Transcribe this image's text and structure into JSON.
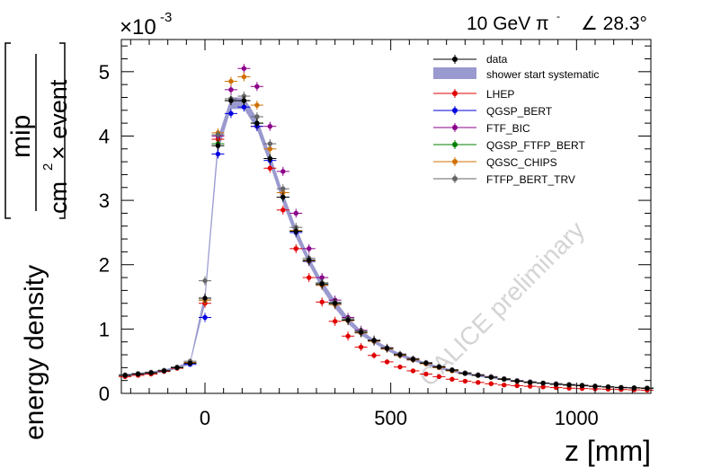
{
  "chart_data": {
    "type": "scatter",
    "title": "10 GeV π⁻  ∠ 28.3°",
    "title_energy": "10 GeV π",
    "title_sup": "-",
    "title_angle": "∠ 28.3°",
    "exponent_label": "×10",
    "exponent_sup": "-3",
    "xlabel": "z [mm]",
    "ylabel_main": "energy density",
    "ylabel_num": "mip",
    "ylabel_den_a": "cm",
    "ylabel_den_sup": "2",
    "ylabel_den_b": " × event",
    "watermark": "CALICE preliminary",
    "xlim": [
      -225,
      1200
    ],
    "ylim": [
      0,
      5.5
    ],
    "y_scale": "1e-3",
    "xticks": [
      0,
      500,
      1000
    ],
    "xtick_labels": [
      "0",
      "500",
      "1000"
    ],
    "yticks": [
      0,
      1,
      2,
      3,
      4,
      5
    ],
    "ytick_labels": [
      "0",
      "1",
      "2",
      "3",
      "4",
      "5"
    ],
    "legend_position": "top-right",
    "x": [
      -215,
      -180,
      -145,
      -110,
      -75,
      -40,
      0,
      35,
      70,
      105,
      140,
      175,
      210,
      245,
      280,
      315,
      350,
      385,
      420,
      455,
      490,
      525,
      560,
      595,
      630,
      665,
      700,
      735,
      770,
      805,
      840,
      875,
      910,
      945,
      980,
      1015,
      1050,
      1085,
      1120,
      1155,
      1190
    ],
    "band": {
      "name": "shower start systematic",
      "color": "#9a9ad0",
      "lower": [
        0.26,
        0.28,
        0.3,
        0.33,
        0.38,
        0.45,
        1.38,
        3.75,
        4.42,
        4.42,
        4.1,
        3.55,
        2.95,
        2.42,
        2.0,
        1.62,
        1.32,
        1.08,
        0.9,
        0.78,
        0.66,
        0.57,
        0.5,
        0.44,
        0.38,
        0.33,
        0.29,
        0.26,
        0.23,
        0.2,
        0.18,
        0.16,
        0.15,
        0.13,
        0.12,
        0.11,
        0.1,
        0.09,
        0.08,
        0.08,
        0.07
      ],
      "upper": [
        0.3,
        0.32,
        0.34,
        0.37,
        0.42,
        0.5,
        1.58,
        3.98,
        4.6,
        4.6,
        4.28,
        3.72,
        3.12,
        2.58,
        2.12,
        1.75,
        1.45,
        1.18,
        0.98,
        0.84,
        0.72,
        0.62,
        0.55,
        0.48,
        0.42,
        0.37,
        0.32,
        0.29,
        0.26,
        0.23,
        0.2,
        0.18,
        0.17,
        0.15,
        0.14,
        0.13,
        0.11,
        0.1,
        0.09,
        0.09,
        0.08
      ]
    },
    "series": [
      {
        "name": "data",
        "color": "#000000",
        "values": [
          0.28,
          0.3,
          0.32,
          0.35,
          0.4,
          0.47,
          1.48,
          3.85,
          4.55,
          4.55,
          4.2,
          3.65,
          3.05,
          2.52,
          2.07,
          1.7,
          1.4,
          1.14,
          0.95,
          0.82,
          0.7,
          0.6,
          0.53,
          0.47,
          0.41,
          0.36,
          0.31,
          0.28,
          0.25,
          0.22,
          0.19,
          0.17,
          0.16,
          0.14,
          0.13,
          0.12,
          0.11,
          0.1,
          0.09,
          0.085,
          0.08
        ]
      },
      {
        "name": "LHEP",
        "color": "#e00000",
        "values": [
          0.26,
          0.28,
          0.3,
          0.34,
          0.39,
          0.47,
          1.4,
          3.95,
          4.55,
          4.55,
          4.15,
          3.5,
          2.85,
          2.25,
          1.8,
          1.42,
          1.12,
          0.89,
          0.72,
          0.59,
          0.49,
          0.41,
          0.35,
          0.3,
          0.26,
          0.22,
          0.19,
          0.17,
          0.15,
          0.13,
          0.12,
          0.11,
          0.1,
          0.09,
          0.08,
          0.075,
          0.07,
          0.065,
          0.06,
          0.055,
          0.05
        ]
      },
      {
        "name": "QGSP_BERT",
        "color": "#0000e0",
        "values": [
          0.28,
          0.3,
          0.32,
          0.35,
          0.4,
          0.45,
          1.18,
          3.72,
          4.35,
          4.45,
          4.15,
          3.62,
          3.05,
          2.5,
          2.05,
          1.68,
          1.38,
          1.13,
          0.94,
          0.81,
          0.69,
          0.59,
          0.52,
          0.46,
          0.4,
          0.35,
          0.31,
          0.28,
          0.25,
          0.22,
          0.19,
          0.17,
          0.16,
          0.14,
          0.13,
          0.12,
          0.11,
          0.1,
          0.09,
          0.085,
          0.08
        ]
      },
      {
        "name": "FTF_BIC",
        "color": "#8b008b",
        "values": [
          0.28,
          0.3,
          0.32,
          0.35,
          0.4,
          0.48,
          1.45,
          4.0,
          4.72,
          5.05,
          4.77,
          4.15,
          3.45,
          2.8,
          2.25,
          1.8,
          1.45,
          1.18,
          0.98,
          0.83,
          0.71,
          0.61,
          0.54,
          0.47,
          0.41,
          0.36,
          0.32,
          0.29,
          0.26,
          0.23,
          0.2,
          0.18,
          0.16,
          0.15,
          0.13,
          0.12,
          0.11,
          0.1,
          0.09,
          0.085,
          0.08
        ]
      },
      {
        "name": "QGSP_FTFP_BERT",
        "color": "#008000",
        "values": [
          0.28,
          0.3,
          0.32,
          0.35,
          0.4,
          0.47,
          1.45,
          3.88,
          4.55,
          4.55,
          4.2,
          3.65,
          3.05,
          2.52,
          2.07,
          1.7,
          1.4,
          1.14,
          0.95,
          0.82,
          0.7,
          0.6,
          0.53,
          0.47,
          0.41,
          0.36,
          0.31,
          0.28,
          0.25,
          0.22,
          0.19,
          0.17,
          0.16,
          0.14,
          0.13,
          0.12,
          0.11,
          0.1,
          0.09,
          0.085,
          0.08
        ]
      },
      {
        "name": "QGSC_CHIPS",
        "color": "#d07000",
        "values": [
          0.28,
          0.3,
          0.32,
          0.35,
          0.4,
          0.48,
          1.45,
          4.05,
          4.85,
          4.92,
          4.48,
          3.8,
          3.12,
          2.53,
          2.06,
          1.68,
          1.38,
          1.13,
          0.94,
          0.81,
          0.69,
          0.59,
          0.52,
          0.46,
          0.4,
          0.35,
          0.31,
          0.28,
          0.25,
          0.22,
          0.19,
          0.17,
          0.16,
          0.14,
          0.13,
          0.12,
          0.11,
          0.1,
          0.09,
          0.085,
          0.08
        ]
      },
      {
        "name": "FTFP_BERT_TRV",
        "color": "#666666",
        "values": [
          0.29,
          0.31,
          0.33,
          0.36,
          0.41,
          0.5,
          1.75,
          4.02,
          4.58,
          4.62,
          4.3,
          3.88,
          3.18,
          2.58,
          2.1,
          1.72,
          1.42,
          1.16,
          0.97,
          0.83,
          0.71,
          0.61,
          0.54,
          0.48,
          0.42,
          0.37,
          0.32,
          0.29,
          0.26,
          0.23,
          0.2,
          0.18,
          0.16,
          0.15,
          0.14,
          0.13,
          0.115,
          0.105,
          0.095,
          0.09,
          0.085
        ]
      }
    ]
  }
}
